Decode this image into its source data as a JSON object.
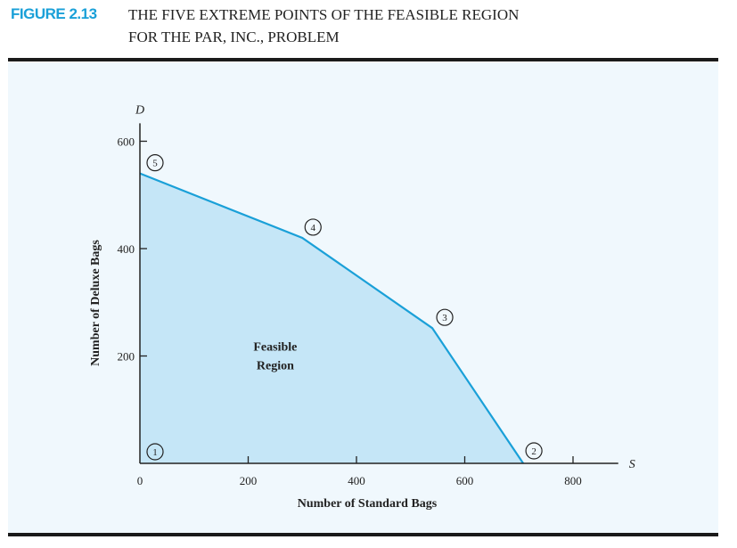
{
  "figure": {
    "number": "FIGURE 2.13",
    "title_line1": "THE FIVE EXTREME POINTS OF THE FEASIBLE REGION",
    "title_line2": "FOR THE PAR, INC., PROBLEM"
  },
  "colors": {
    "accent": "#1aa0d8",
    "region_fill": "#c5e6f7",
    "boundary": "#1aa0d8",
    "panel": "#f0f8fd"
  },
  "chart_data": {
    "type": "area",
    "xlabel": "Number of Standard Bags",
    "ylabel": "Number of Deluxe Bags",
    "x_axis_symbol": "S",
    "y_axis_symbol": "D",
    "xlim": [
      0,
      900
    ],
    "ylim": [
      0,
      650
    ],
    "xticks": [
      "0",
      "200",
      "400",
      "600",
      "800"
    ],
    "xtick_values": [
      0,
      200,
      400,
      600,
      800
    ],
    "yticks": [
      "200",
      "400",
      "600"
    ],
    "ytick_values": [
      200,
      400,
      600
    ],
    "region_label_line1": "Feasible",
    "region_label_line2": "Region",
    "region_label_at": [
      250,
      220
    ],
    "extreme_points": [
      {
        "label": "1",
        "x": 0,
        "y": 0
      },
      {
        "label": "2",
        "x": 708,
        "y": 0
      },
      {
        "label": "3",
        "x": 540,
        "y": 252
      },
      {
        "label": "4",
        "x": 300,
        "y": 420
      },
      {
        "label": "5",
        "x": 0,
        "y": 540
      }
    ]
  }
}
